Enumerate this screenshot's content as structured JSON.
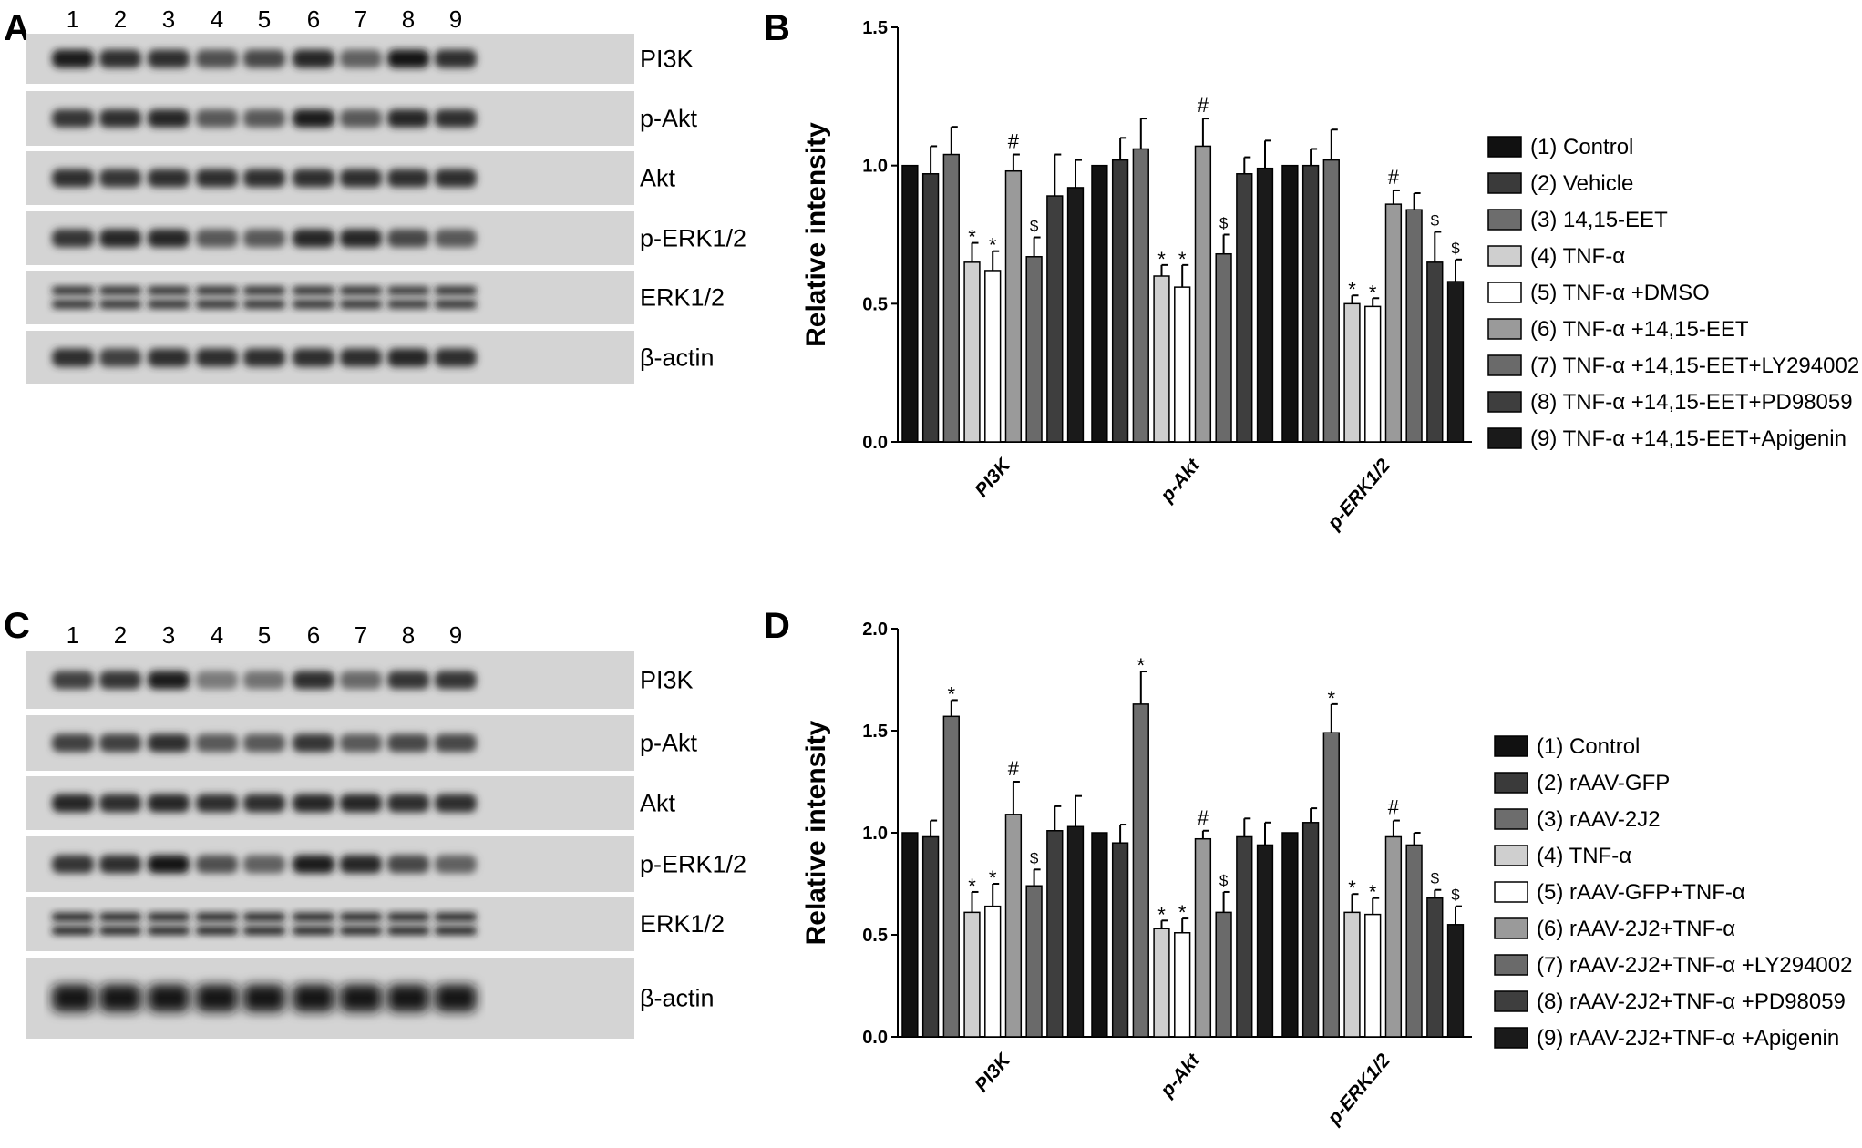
{
  "panels": {
    "A": "A",
    "B": "B",
    "C": "C",
    "D": "D"
  },
  "blots": [
    {
      "panel": "A",
      "lanes": [
        "1",
        "2",
        "3",
        "4",
        "5",
        "6",
        "7",
        "8",
        "9"
      ],
      "rows": [
        {
          "label": "PI3K",
          "intensity": [
            0.95,
            0.85,
            0.85,
            0.65,
            0.7,
            0.9,
            0.55,
            1.0,
            0.85
          ]
        },
        {
          "label": "p-Akt",
          "intensity": [
            0.8,
            0.85,
            0.9,
            0.6,
            0.6,
            0.95,
            0.6,
            0.9,
            0.85
          ]
        },
        {
          "label": "Akt",
          "intensity": [
            0.85,
            0.8,
            0.85,
            0.85,
            0.85,
            0.85,
            0.85,
            0.85,
            0.85
          ]
        },
        {
          "label": "p-ERK1/2",
          "intensity": [
            0.8,
            0.9,
            0.9,
            0.6,
            0.6,
            0.9,
            0.9,
            0.7,
            0.6
          ]
        },
        {
          "label": "ERK1/2",
          "intensity": [
            0.9,
            0.9,
            0.9,
            0.9,
            0.9,
            0.9,
            0.9,
            0.85,
            0.9
          ]
        },
        {
          "label": "β-actin",
          "intensity": [
            0.85,
            0.75,
            0.85,
            0.85,
            0.85,
            0.85,
            0.85,
            0.9,
            0.85
          ]
        }
      ]
    },
    {
      "panel": "C",
      "lanes": [
        "1",
        "2",
        "3",
        "4",
        "5",
        "6",
        "7",
        "8",
        "9"
      ],
      "rows": [
        {
          "label": "PI3K",
          "intensity": [
            0.75,
            0.8,
            0.95,
            0.4,
            0.45,
            0.85,
            0.5,
            0.8,
            0.8
          ]
        },
        {
          "label": "p-Akt",
          "intensity": [
            0.75,
            0.75,
            0.85,
            0.6,
            0.6,
            0.8,
            0.6,
            0.7,
            0.7
          ]
        },
        {
          "label": "Akt",
          "intensity": [
            0.9,
            0.85,
            0.9,
            0.85,
            0.85,
            0.9,
            0.9,
            0.85,
            0.85
          ]
        },
        {
          "label": "p-ERK1/2",
          "intensity": [
            0.8,
            0.85,
            1.0,
            0.65,
            0.55,
            0.95,
            0.9,
            0.7,
            0.55
          ]
        },
        {
          "label": "ERK1/2",
          "intensity": [
            0.95,
            0.95,
            0.95,
            0.95,
            0.95,
            0.95,
            0.95,
            0.95,
            0.95
          ]
        },
        {
          "label": "β-actin",
          "intensity": [
            1.0,
            1.0,
            1.0,
            1.0,
            1.0,
            1.0,
            1.0,
            1.0,
            1.0
          ]
        }
      ]
    }
  ],
  "chart_data": [
    {
      "panel": "B",
      "type": "bar",
      "ylabel": "Relative intensity",
      "xlabel": "",
      "ylim": [
        0,
        1.5
      ],
      "yticks": [
        "0.0",
        "0.5",
        "1.0",
        "1.5"
      ],
      "categories": [
        "PI3K",
        "p-Akt",
        "p-ERK1/2"
      ],
      "legend_position": "right",
      "series": [
        {
          "name": "(1) Control",
          "color": "#111111",
          "values": [
            1.0,
            1.0,
            1.0
          ],
          "errors": [
            0,
            0,
            0
          ],
          "annotations": [
            "",
            "",
            ""
          ]
        },
        {
          "name": "(2) Vehicle",
          "color": "#3a3a3a",
          "values": [
            0.97,
            1.02,
            1.0
          ],
          "errors": [
            0.1,
            0.08,
            0.06
          ],
          "annotations": [
            "",
            "",
            ""
          ]
        },
        {
          "name": "(3) 14,15-EET",
          "color": "#6d6d6d",
          "values": [
            1.04,
            1.06,
            1.02
          ],
          "errors": [
            0.1,
            0.11,
            0.11
          ],
          "annotations": [
            "",
            "",
            ""
          ]
        },
        {
          "name": "(4) TNF-α",
          "color": "#cfcfcf",
          "values": [
            0.65,
            0.6,
            0.5
          ],
          "errors": [
            0.07,
            0.04,
            0.03
          ],
          "annotations": [
            "*",
            "*",
            "*"
          ]
        },
        {
          "name": "(5) TNF-α +DMSO",
          "color": "#ffffff",
          "values": [
            0.62,
            0.56,
            0.49
          ],
          "errors": [
            0.07,
            0.08,
            0.03
          ],
          "annotations": [
            "*",
            "*",
            "*"
          ]
        },
        {
          "name": "(6) TNF-α +14,15-EET",
          "color": "#9a9a9a",
          "values": [
            0.98,
            1.07,
            0.86
          ],
          "errors": [
            0.06,
            0.1,
            0.05
          ],
          "annotations": [
            "#",
            "#",
            "#"
          ]
        },
        {
          "name": "(7) TNF-α +14,15-EET+LY294002",
          "color": "#6a6a6a",
          "values": [
            0.67,
            0.68,
            0.84
          ],
          "errors": [
            0.07,
            0.07,
            0.06
          ],
          "annotations": [
            "$",
            "$",
            ""
          ]
        },
        {
          "name": "(8) TNF-α +14,15-EET+PD98059",
          "color": "#3e3e3e",
          "values": [
            0.89,
            0.97,
            0.65
          ],
          "errors": [
            0.15,
            0.06,
            0.11
          ],
          "annotations": [
            "",
            "",
            "$"
          ]
        },
        {
          "name": "(9) TNF-α +14,15-EET+Apigenin",
          "color": "#1a1a1a",
          "values": [
            0.92,
            0.99,
            0.58
          ],
          "errors": [
            0.1,
            0.1,
            0.08
          ],
          "annotations": [
            "",
            "",
            "$"
          ]
        }
      ]
    },
    {
      "panel": "D",
      "type": "bar",
      "ylabel": "Relative intensity",
      "xlabel": "",
      "ylim": [
        0,
        2.0
      ],
      "yticks": [
        "0.0",
        "0.5",
        "1.0",
        "1.5",
        "2.0"
      ],
      "categories": [
        "PI3K",
        "p-Akt",
        "p-ERK1/2"
      ],
      "legend_position": "right",
      "series": [
        {
          "name": "(1) Control",
          "color": "#111111",
          "values": [
            1.0,
            1.0,
            1.0
          ],
          "errors": [
            0,
            0,
            0
          ],
          "annotations": [
            "",
            "",
            ""
          ]
        },
        {
          "name": "(2) rAAV-GFP",
          "color": "#3a3a3a",
          "values": [
            0.98,
            0.95,
            1.05
          ],
          "errors": [
            0.08,
            0.09,
            0.07
          ],
          "annotations": [
            "",
            "",
            ""
          ]
        },
        {
          "name": "(3) rAAV-2J2",
          "color": "#6d6d6d",
          "values": [
            1.57,
            1.63,
            1.49
          ],
          "errors": [
            0.08,
            0.16,
            0.14
          ],
          "annotations": [
            "*",
            "*",
            "*"
          ]
        },
        {
          "name": "(4) TNF-α",
          "color": "#cfcfcf",
          "values": [
            0.61,
            0.53,
            0.61
          ],
          "errors": [
            0.1,
            0.04,
            0.09
          ],
          "annotations": [
            "*",
            "*",
            "*"
          ]
        },
        {
          "name": "(5) rAAV-GFP+TNF-α",
          "color": "#ffffff",
          "values": [
            0.64,
            0.51,
            0.6
          ],
          "errors": [
            0.11,
            0.07,
            0.08
          ],
          "annotations": [
            "*",
            "*",
            "*"
          ]
        },
        {
          "name": "(6) rAAV-2J2+TNF-α",
          "color": "#9a9a9a",
          "values": [
            1.09,
            0.97,
            0.98
          ],
          "errors": [
            0.16,
            0.04,
            0.08
          ],
          "annotations": [
            "#",
            "#",
            "#"
          ]
        },
        {
          "name": "(7) rAAV-2J2+TNF-α +LY294002",
          "color": "#6a6a6a",
          "values": [
            0.74,
            0.61,
            0.94
          ],
          "errors": [
            0.08,
            0.1,
            0.06
          ],
          "annotations": [
            "$",
            "$",
            ""
          ]
        },
        {
          "name": "(8) rAAV-2J2+TNF-α +PD98059",
          "color": "#3e3e3e",
          "values": [
            1.01,
            0.98,
            0.68
          ],
          "errors": [
            0.12,
            0.09,
            0.04
          ],
          "annotations": [
            "",
            "",
            "$"
          ]
        },
        {
          "name": "(9) rAAV-2J2+TNF-α +Apigenin",
          "color": "#1a1a1a",
          "values": [
            1.03,
            0.94,
            0.55
          ],
          "errors": [
            0.15,
            0.11,
            0.09
          ],
          "annotations": [
            "",
            "",
            "$"
          ]
        }
      ]
    }
  ]
}
